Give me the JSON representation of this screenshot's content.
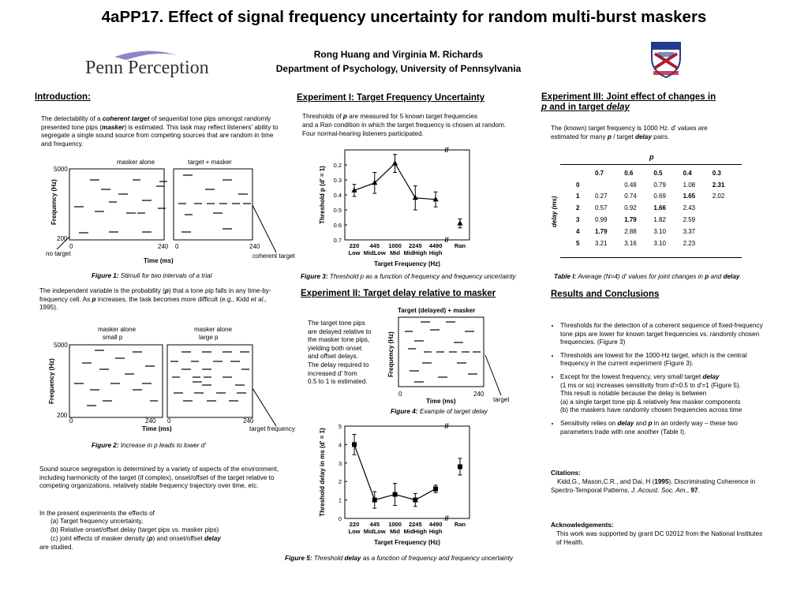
{
  "header": {
    "title": "4aPP17. Effect of signal frequency uncertainty for random multi-burst maskers",
    "authors": "Rong Huang and Virginia M. Richards",
    "department": "Department of Psychology, University of Pennsylvania",
    "logo_text": "Penn Perception"
  },
  "intro": {
    "heading": "Introduction:",
    "para1": [
      "The detectability of a ",
      "coherent target",
      " of sequential tone pips amongst randomly presented tone pips (",
      "masker",
      ") is estimated. This task may reflect listeners' ability to segregate a single sound source from competing sources that are random in time and frequency."
    ],
    "fig1": {
      "label_left": "masker alone",
      "label_right": "target + masker",
      "y_top": "5000",
      "y_bottom": "200",
      "y_axis": "Frequency (Hz)",
      "x0": "0",
      "x240": "240",
      "x_axis": "Time (ms)",
      "no_target": "no target",
      "coherent_target": "coherent target",
      "caption_label": "Figure 1:",
      "caption": " Stimuli for two intervals of a trial"
    },
    "para2": [
      "The independent variable is the probability (",
      "p",
      ") that a tone pip falls in any time-by-frequency cell.  As ",
      "p",
      " increases, the task becomes more difficult (e.g., Kidd ",
      "et al",
      "., 1995)."
    ],
    "fig2": {
      "label_left1": "masker alone",
      "label_left2": "small p",
      "label_right1": "masker alone",
      "label_right2": "large p",
      "y_top": "5000",
      "y_bottom": "200",
      "y_axis": "Frequency (Hz)",
      "x0": "0",
      "x240": "240",
      "x_axis": "Time (ms)",
      "target_frequency": "target frequency",
      "caption_label": "Figure 2:",
      "caption": " Increase in p leads to lower d'"
    },
    "para3": "Sound source segregation is determined by a variety of aspects of the environment, including harmonicity of the target (if complex), onset/offset of the target relative to competing organizations, relatively stable frequency trajectory over time, etc.",
    "para4_intro": "In the present experiments the effects of",
    "list_a": "(a) Target frequency uncertainty,",
    "list_b": "(b) Relative onset/offset delay (target pips vs. masker pips)",
    "list_c": [
      "(c) joint effects of masker density (",
      "p",
      ") and onset/offset ",
      "delay"
    ],
    "closing": "are studied."
  },
  "exp1": {
    "heading": "Experiment I: Target Frequency Uncertainty",
    "text1": [
      "Thresholds of ",
      "p",
      " are measured for 5 known target frequencies"
    ],
    "text2": "and a Ran condition in which the target frequency is chosen at random.",
    "text3": "Four normal-hearing listeners participated.",
    "fig3_caption_label": "Figure 3:",
    "fig3_caption": " Threshold p as a function of frequency and frequency uncertainty"
  },
  "chart_data": [
    {
      "type": "line",
      "figure": "Figure 3",
      "categories": [
        "220",
        "445",
        "1000",
        "2245",
        "4490",
        "Ran"
      ],
      "category_sublabels": [
        "Low",
        "MidLow",
        "Mid",
        "MidHigh",
        "High",
        ""
      ],
      "x_positions": [
        0,
        1,
        2,
        3,
        4,
        5.2
      ],
      "values": [
        0.37,
        0.32,
        0.19,
        0.42,
        0.43,
        0.59
      ],
      "errors": [
        0.04,
        0.07,
        0.06,
        0.08,
        0.05,
        0.03
      ],
      "ylabel": "Threshold p (d' = 1)",
      "xlabel": "Target Frequency (Hz)",
      "ylim": [
        0.1,
        0.7
      ],
      "y_ticks": [
        "0.2",
        "0.3",
        "0.4",
        "0.5",
        "0.6",
        "0.7"
      ],
      "marker": "triangle"
    },
    {
      "type": "line",
      "figure": "Figure 5",
      "categories": [
        "220",
        "445",
        "1000",
        "2245",
        "4490",
        "Ran"
      ],
      "category_sublabels": [
        "Low",
        "MidLow",
        "Mid",
        "MidHigh",
        "High",
        ""
      ],
      "x_positions": [
        0,
        1,
        2,
        3,
        4,
        5.2
      ],
      "values": [
        4.0,
        1.0,
        1.3,
        1.0,
        1.6,
        2.8
      ],
      "errors": [
        0.55,
        0.45,
        0.6,
        0.35,
        0.2,
        0.45
      ],
      "ylabel": "Threshold delay in ms  (d' = 1)",
      "xlabel": "Target Frequency (Hz)",
      "ylim": [
        0,
        5
      ],
      "y_ticks": [
        "0",
        "1",
        "2",
        "3",
        "4",
        "5"
      ],
      "marker": "square"
    },
    {
      "type": "table",
      "figure": "Table I",
      "col_header": "p",
      "row_header": "delay (ms)",
      "columns": [
        "0.7",
        "0.6",
        "0.5",
        "0.4",
        "0.3"
      ],
      "rows": [
        {
          "delay": "0",
          "cells": [
            "",
            "0.48",
            "0.79",
            "1.08",
            "2.31"
          ],
          "bold": [
            4
          ]
        },
        {
          "delay": "1",
          "cells": [
            "0.27",
            "0.74",
            "0.69",
            "1.65",
            "2.02"
          ],
          "bold": [
            3
          ]
        },
        {
          "delay": "2",
          "cells": [
            "0.57",
            "0.92",
            "1.66",
            "2.43",
            ""
          ],
          "bold": [
            2
          ]
        },
        {
          "delay": "3",
          "cells": [
            "0.99",
            "1.79",
            "1.82",
            "2.59",
            ""
          ],
          "bold": [
            1
          ]
        },
        {
          "delay": "4",
          "cells": [
            "1.79",
            "2.88",
            "3.10",
            "3.37",
            ""
          ],
          "bold": [
            0
          ]
        },
        {
          "delay": "5",
          "cells": [
            "3.21",
            "3.16",
            "3.10",
            "2.23",
            ""
          ],
          "bold": []
        }
      ]
    }
  ],
  "exp2": {
    "heading": "Experiment II: Target delay relative to masker",
    "fig4_title": "Target (delayed) + masker",
    "text": [
      "The target tone pips",
      "are delayed relative to",
      "the masker tone pips,",
      "yielding both onset",
      "and offset delays.",
      "The delay required to",
      "increased d' from",
      "0.5 to 1 is estimated."
    ],
    "y_axis": "Frequency (Hz)",
    "x0": "0",
    "x240": "240",
    "x_axis": "Time (ms)",
    "target": "target",
    "fig4_caption_label": "Figure 4:",
    "fig4_caption": " Example of target delay",
    "fig5_caption": [
      "Figure 5:",
      " Threshold ",
      "delay",
      " as a function of frequency and frequency uncertainty"
    ]
  },
  "exp3": {
    "heading1": "Experiment III: Joint effect of changes in",
    "heading2_a": "p",
    "heading2_b": " and in target ",
    "heading2_c": "delay",
    "text1": "The (known) target frequency is 1000 Hz.  d' values are",
    "text2": [
      "estimated for many ",
      "p",
      " / target ",
      "delay",
      " pairs."
    ],
    "table_caption": [
      "Table I:",
      " Average (N=4) d' values for joint changes in ",
      "p",
      " and ",
      "delay",
      "."
    ]
  },
  "results": {
    "heading": "Results and Conclusions",
    "b1": "Thresholds for the detection of a coherent sequence of fixed-frequency tone pips are lower for known target frequencies vs. randomly chosen frequencies. (Figure 3)",
    "b2": "Thresholds are lowest for the 1000-Hz target, which is the central frequency in the current experiment (Figure 3).",
    "b3_l1": [
      "Except for the lowest frequency, very small target ",
      "delay"
    ],
    "b3_l2": "(1 ms or so) increases sensitivity from d'=0.5 to d'=1 (Figure 5).",
    "b3_l3": "This result is notable because the delay is between",
    "b3_l4": "(a)  a single target tone pip & relatively few masker components",
    "b3_l5": "(b) the maskers have randomly chosen frequencies across time",
    "b4": [
      "Sensitivity relies on ",
      "delay",
      " and ",
      "p",
      " in an orderly way – these two parameters trade with one another (Table I)."
    ]
  },
  "citations": {
    "heading": "Citations:",
    "text": [
      "Kidd,G., Mason,C.R., and Dai, H (",
      "1995",
      ").  Discriminating Coherence in Spectro-Temporal Patterns, ",
      "J. Acoust. Soc. Am.",
      ", ",
      "97",
      "."
    ]
  },
  "ack": {
    "heading": "Acknowledgements:",
    "text": "This work was supported by grant DC 02012 from the National Institutes of Health."
  }
}
